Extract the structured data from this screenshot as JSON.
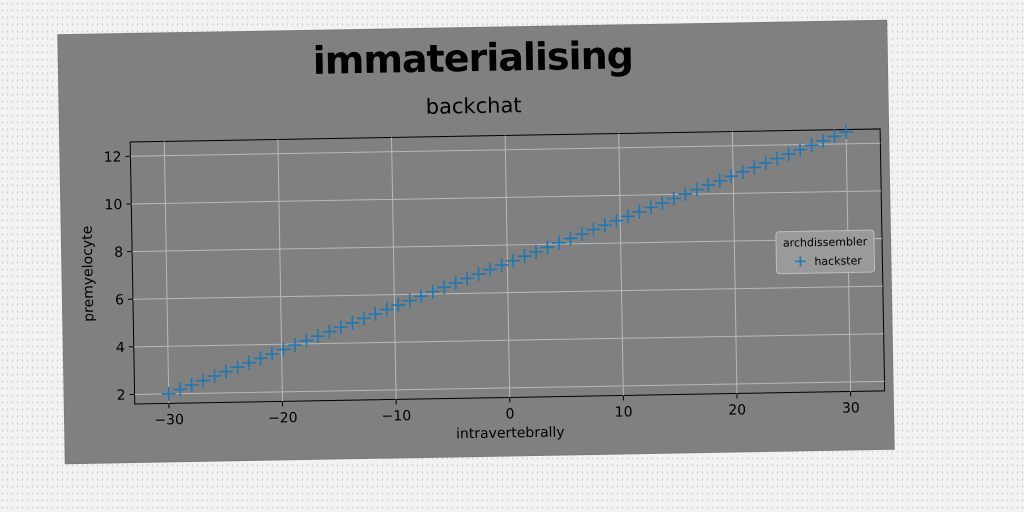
{
  "chart_data": {
    "type": "scatter",
    "suptitle": "immaterialising",
    "title": "backchat",
    "xlabel": "intravertebrally",
    "ylabel": "premyelocyte",
    "xlim": [
      -33,
      33
    ],
    "ylim": [
      1.6,
      12.6
    ],
    "xticks": [
      -30,
      -20,
      -10,
      0,
      10,
      20,
      30
    ],
    "yticks": [
      2,
      4,
      6,
      8,
      10,
      12
    ],
    "grid": true,
    "legend": {
      "title": "archdissembler",
      "placement": "center-right"
    },
    "marker": "+",
    "series": [
      {
        "name": "hackster",
        "color": "#1f77b4",
        "x_start": -30,
        "x_end": 30,
        "y_start": 2.0,
        "y_end": 12.5,
        "n_points": 60
      }
    ]
  }
}
